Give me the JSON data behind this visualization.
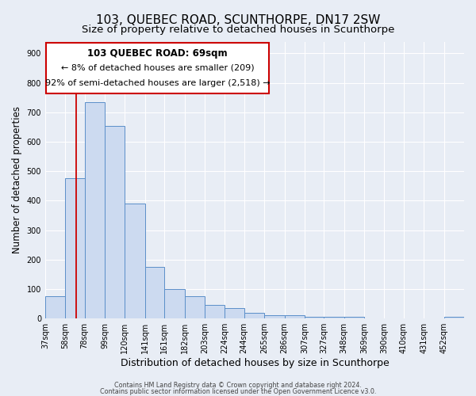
{
  "title": "103, QUEBEC ROAD, SCUNTHORPE, DN17 2SW",
  "subtitle": "Size of property relative to detached houses in Scunthorpe",
  "xlabel": "Distribution of detached houses by size in Scunthorpe",
  "ylabel": "Number of detached properties",
  "footer_line1": "Contains HM Land Registry data © Crown copyright and database right 2024.",
  "footer_line2": "Contains public sector information licensed under the Open Government Licence v3.0.",
  "bar_edges": [
    37,
    58,
    78,
    99,
    120,
    141,
    161,
    182,
    203,
    224,
    244,
    265,
    286,
    307,
    327,
    348,
    369,
    390,
    410,
    431,
    452
  ],
  "bar_heights": [
    75,
    475,
    735,
    655,
    390,
    175,
    100,
    75,
    45,
    35,
    20,
    10,
    10,
    5,
    5,
    5,
    0,
    0,
    0,
    0,
    5
  ],
  "bar_color": "#ccdaf0",
  "bar_edge_color": "#5b8fc9",
  "red_line_x": 69,
  "red_line_color": "#cc0000",
  "ann_line1": "103 QUEBEC ROAD: 69sqm",
  "ann_line2": "← 8% of detached houses are smaller (209)",
  "ann_line3": "92% of semi-detached houses are larger (2,518) →",
  "ylim_max": 940,
  "yticks": [
    0,
    100,
    200,
    300,
    400,
    500,
    600,
    700,
    800,
    900
  ],
  "bg_color": "#e8edf5",
  "grid_color": "#ffffff",
  "title_fontsize": 11,
  "subtitle_fontsize": 9.5,
  "tick_fontsize": 7,
  "ylabel_fontsize": 8.5,
  "xlabel_fontsize": 9,
  "ann_fontsize1": 8.5,
  "ann_fontsize2": 8.0
}
